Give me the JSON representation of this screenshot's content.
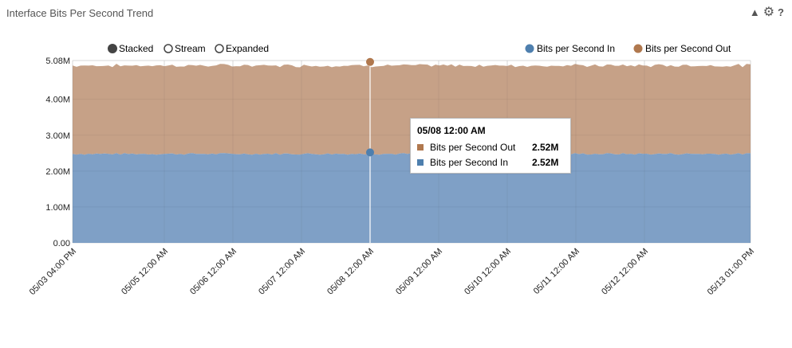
{
  "panel": {
    "title": "Interface Bits Per Second Trend",
    "collapse_icon": "triangle-up-icon",
    "settings_icon": "gear-icon",
    "help_icon": "question-icon",
    "help_label": "?"
  },
  "controls": {
    "options": [
      {
        "label": "Stacked",
        "selected": true
      },
      {
        "label": "Stream",
        "selected": false
      },
      {
        "label": "Expanded",
        "selected": false
      }
    ]
  },
  "colors": {
    "in": "#7FA0C6",
    "out": "#C6A187",
    "in_marker": "#4E7FAE",
    "out_marker": "#B0784E",
    "grid": "#e3e3e3"
  },
  "tooltip": {
    "date": "05/08 12:00 AM",
    "rows": [
      {
        "name": "Bits per Second Out",
        "value": "2.52M"
      },
      {
        "name": "Bits per Second In",
        "value": "2.52M"
      }
    ]
  },
  "chart_data": {
    "type": "area",
    "stacked": true,
    "legend_position": "top-right",
    "grid": true,
    "x_ticks": [
      "05/03 04:00 PM",
      "05/05 12:00 AM",
      "05/06 12:00 AM",
      "05/07 12:00 AM",
      "05/08 12:00 AM",
      "05/09 12:00 AM",
      "05/10 12:00 AM",
      "05/11 12:00 AM",
      "05/12 12:00 AM",
      "05/13 01:00 PM"
    ],
    "x_range": [
      "05/03 04:00 PM",
      "05/13 01:00 PM"
    ],
    "y_ticks": [
      "0.00",
      "1.00M",
      "2.00M",
      "3.00M",
      "4.00M",
      "5.08M"
    ],
    "ylim": [
      0,
      5080000
    ],
    "series": [
      {
        "name": "Bits per Second In",
        "value_approx": 2480000,
        "tooltip_at_05_08_12_00_AM": 2520000
      },
      {
        "name": "Bits per Second Out",
        "value_approx": 2460000,
        "tooltip_at_05_08_12_00_AM": 2520000
      }
    ],
    "highlight_x": "05/08 12:00 AM"
  }
}
